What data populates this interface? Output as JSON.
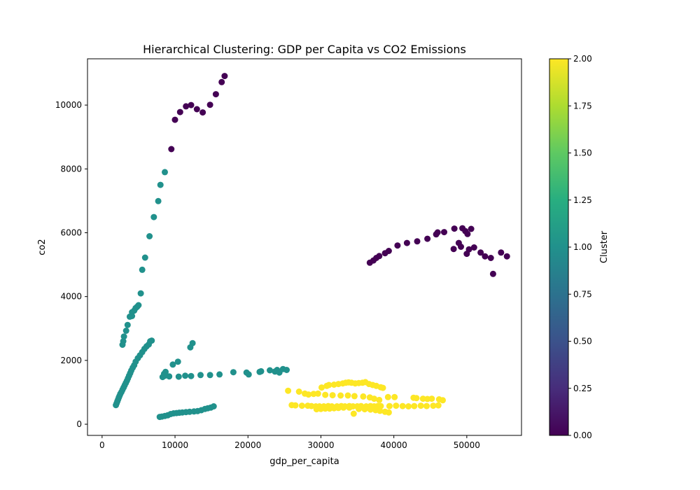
{
  "chart_data": {
    "type": "scatter",
    "title": "Hierarchical Clustering: GDP per Capita vs CO2 Emissions",
    "xlabel": "gdp_per_capita",
    "ylabel": "co2",
    "xlim": [
      -2000,
      57500
    ],
    "ylim": [
      -350,
      11450
    ],
    "xticks": [
      0,
      10000,
      20000,
      30000,
      40000,
      50000
    ],
    "yticks": [
      0,
      2000,
      4000,
      6000,
      8000,
      10000
    ],
    "grid": false,
    "colorbar": {
      "label": "Cluster",
      "range": [
        0,
        2
      ],
      "ticks": [
        "0.00",
        "0.25",
        "0.50",
        "0.75",
        "1.00",
        "1.25",
        "1.50",
        "1.75",
        "2.00"
      ],
      "colormap": "viridis"
    },
    "cluster_colors": {
      "0": "#440154",
      "1": "#21918c",
      "2": "#fde725"
    },
    "series": [
      {
        "cluster": 0,
        "points": [
          [
            9500,
            8620
          ],
          [
            10000,
            9540
          ],
          [
            10700,
            9780
          ],
          [
            11500,
            9960
          ],
          [
            12200,
            10000
          ],
          [
            13000,
            9870
          ],
          [
            13800,
            9770
          ],
          [
            14800,
            10010
          ],
          [
            15600,
            10340
          ],
          [
            16400,
            10720
          ],
          [
            16800,
            10910
          ],
          [
            36700,
            5060
          ],
          [
            37200,
            5130
          ],
          [
            37600,
            5210
          ],
          [
            38000,
            5270
          ],
          [
            38800,
            5360
          ],
          [
            39300,
            5430
          ],
          [
            40500,
            5600
          ],
          [
            41800,
            5680
          ],
          [
            43200,
            5730
          ],
          [
            44600,
            5810
          ],
          [
            45800,
            5950
          ],
          [
            46000,
            6010
          ],
          [
            46900,
            6020
          ],
          [
            48300,
            6130
          ],
          [
            48200,
            5490
          ],
          [
            48900,
            5680
          ],
          [
            49200,
            5560
          ],
          [
            49400,
            6140
          ],
          [
            49800,
            6050
          ],
          [
            50000,
            5340
          ],
          [
            50300,
            5480
          ],
          [
            50600,
            6120
          ],
          [
            50100,
            5960
          ],
          [
            51000,
            5540
          ],
          [
            51900,
            5380
          ],
          [
            52500,
            5260
          ],
          [
            53300,
            5210
          ],
          [
            53600,
            4710
          ],
          [
            54700,
            5380
          ],
          [
            55500,
            5260
          ]
        ]
      },
      {
        "cluster": 1,
        "points": [
          [
            1900,
            600
          ],
          [
            2000,
            660
          ],
          [
            2100,
            720
          ],
          [
            2200,
            780
          ],
          [
            2300,
            840
          ],
          [
            2400,
            890
          ],
          [
            2500,
            950
          ],
          [
            2650,
            1010
          ],
          [
            2800,
            1080
          ],
          [
            2950,
            1150
          ],
          [
            3100,
            1220
          ],
          [
            3250,
            1290
          ],
          [
            3400,
            1360
          ],
          [
            3550,
            1440
          ],
          [
            3700,
            1520
          ],
          [
            3850,
            1600
          ],
          [
            4000,
            1680
          ],
          [
            4200,
            1770
          ],
          [
            4400,
            1850
          ],
          [
            4600,
            1960
          ],
          [
            4900,
            2070
          ],
          [
            5200,
            2160
          ],
          [
            5500,
            2260
          ],
          [
            5800,
            2360
          ],
          [
            6100,
            2440
          ],
          [
            6400,
            2500
          ],
          [
            6600,
            2600
          ],
          [
            6800,
            2620
          ],
          [
            2800,
            2490
          ],
          [
            2900,
            2600
          ],
          [
            3000,
            2750
          ],
          [
            3300,
            2930
          ],
          [
            3500,
            3110
          ],
          [
            3800,
            3370
          ],
          [
            4100,
            3390
          ],
          [
            4100,
            3510
          ],
          [
            4400,
            3560
          ],
          [
            4600,
            3640
          ],
          [
            4800,
            3680
          ],
          [
            5000,
            3730
          ],
          [
            5300,
            4100
          ],
          [
            5500,
            4840
          ],
          [
            5900,
            5220
          ],
          [
            6500,
            5890
          ],
          [
            7100,
            6490
          ],
          [
            7700,
            6990
          ],
          [
            8000,
            7500
          ],
          [
            8600,
            7900
          ],
          [
            8300,
            1480
          ],
          [
            8500,
            1580
          ],
          [
            8700,
            1640
          ],
          [
            8600,
            1520
          ],
          [
            9200,
            1500
          ],
          [
            9700,
            1870
          ],
          [
            10400,
            1960
          ],
          [
            10500,
            1490
          ],
          [
            11400,
            1520
          ],
          [
            12200,
            1510
          ],
          [
            12100,
            2410
          ],
          [
            12400,
            2540
          ],
          [
            13500,
            1540
          ],
          [
            14800,
            1540
          ],
          [
            16100,
            1560
          ],
          [
            18000,
            1630
          ],
          [
            19800,
            1620
          ],
          [
            20100,
            1560
          ],
          [
            21600,
            1640
          ],
          [
            21800,
            1660
          ],
          [
            23000,
            1690
          ],
          [
            23700,
            1650
          ],
          [
            24000,
            1700
          ],
          [
            24300,
            1620
          ],
          [
            24800,
            1730
          ],
          [
            25300,
            1700
          ],
          [
            7900,
            230
          ],
          [
            8200,
            240
          ],
          [
            8600,
            260
          ],
          [
            9000,
            280
          ],
          [
            9400,
            320
          ],
          [
            9800,
            340
          ],
          [
            10200,
            350
          ],
          [
            10600,
            360
          ],
          [
            11000,
            370
          ],
          [
            11500,
            380
          ],
          [
            12000,
            390
          ],
          [
            12600,
            400
          ],
          [
            13100,
            410
          ],
          [
            13600,
            440
          ],
          [
            14100,
            480
          ],
          [
            14500,
            500
          ],
          [
            14900,
            520
          ],
          [
            15300,
            560
          ]
        ]
      },
      {
        "cluster": 2,
        "points": [
          [
            25500,
            1050
          ],
          [
            26000,
            600
          ],
          [
            26500,
            590
          ],
          [
            27000,
            1020
          ],
          [
            27800,
            960
          ],
          [
            28300,
            930
          ],
          [
            29000,
            950
          ],
          [
            29600,
            960
          ],
          [
            30100,
            1150
          ],
          [
            30800,
            1200
          ],
          [
            31100,
            1230
          ],
          [
            31800,
            1240
          ],
          [
            32400,
            1260
          ],
          [
            33000,
            1280
          ],
          [
            33400,
            1300
          ],
          [
            33800,
            1310
          ],
          [
            34200,
            1300
          ],
          [
            34700,
            1280
          ],
          [
            35200,
            1290
          ],
          [
            35700,
            1300
          ],
          [
            36100,
            1320
          ],
          [
            36600,
            1260
          ],
          [
            37100,
            1230
          ],
          [
            37600,
            1200
          ],
          [
            38200,
            1160
          ],
          [
            38500,
            1140
          ],
          [
            27400,
            580
          ],
          [
            28200,
            580
          ],
          [
            28700,
            570
          ],
          [
            29300,
            560
          ],
          [
            29800,
            560
          ],
          [
            30400,
            560
          ],
          [
            31000,
            570
          ],
          [
            31500,
            560
          ],
          [
            32200,
            560
          ],
          [
            32800,
            570
          ],
          [
            33300,
            560
          ],
          [
            33900,
            570
          ],
          [
            34400,
            560
          ],
          [
            35000,
            560
          ],
          [
            35500,
            570
          ],
          [
            36200,
            560
          ],
          [
            36800,
            570
          ],
          [
            37300,
            560
          ],
          [
            37800,
            570
          ],
          [
            38200,
            570
          ],
          [
            29400,
            470
          ],
          [
            30000,
            480
          ],
          [
            30600,
            490
          ],
          [
            31200,
            490
          ],
          [
            31800,
            500
          ],
          [
            32400,
            510
          ],
          [
            33100,
            520
          ],
          [
            33900,
            520
          ],
          [
            34500,
            330
          ],
          [
            35200,
            480
          ],
          [
            36000,
            470
          ],
          [
            36800,
            460
          ],
          [
            37500,
            440
          ],
          [
            38100,
            420
          ],
          [
            38800,
            390
          ],
          [
            39300,
            370
          ],
          [
            30600,
            920
          ],
          [
            31600,
            910
          ],
          [
            32700,
            900
          ],
          [
            33700,
            900
          ],
          [
            34600,
            880
          ],
          [
            35800,
            870
          ],
          [
            36700,
            840
          ],
          [
            37300,
            800
          ],
          [
            38000,
            760
          ],
          [
            39400,
            570
          ],
          [
            40300,
            580
          ],
          [
            41200,
            570
          ],
          [
            42000,
            560
          ],
          [
            42800,
            570
          ],
          [
            43700,
            580
          ],
          [
            44500,
            570
          ],
          [
            45400,
            580
          ],
          [
            46100,
            590
          ],
          [
            39200,
            850
          ],
          [
            40100,
            850
          ],
          [
            42700,
            830
          ],
          [
            43100,
            820
          ],
          [
            44000,
            800
          ],
          [
            44600,
            790
          ],
          [
            45200,
            800
          ],
          [
            46200,
            780
          ],
          [
            46700,
            750
          ]
        ]
      }
    ]
  }
}
